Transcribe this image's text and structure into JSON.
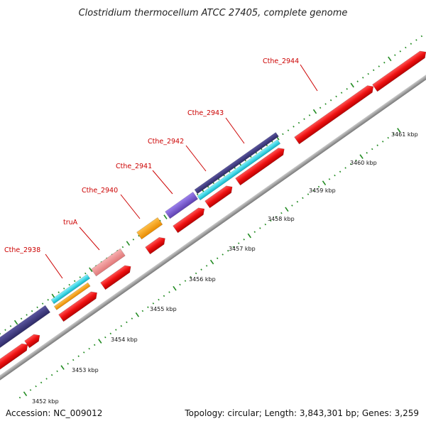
{
  "map": {
    "title": "Clostridium thermocellum ATCC 27405, complete genome",
    "accession_text": "Accession: NC_009012",
    "summary_text": "Topology: circular; Length: 3,843,301 bp; Genes: 3,259",
    "scale_labels": [
      "3452 kbp",
      "3453 kbp",
      "3454 kbp",
      "3455 kbp",
      "3456 kbp",
      "3457 kbp",
      "3458 kbp",
      "3459 kbp",
      "3460 kbp",
      "3461 kbp"
    ],
    "gene_labels": [
      "Cthe_2938",
      "truA",
      "Cthe_2940",
      "Cthe_2941",
      "Cthe_2942",
      "Cthe_2943",
      "Cthe_2944"
    ]
  },
  "colors": {
    "cds": "#ee1111",
    "trna": "#ffa008",
    "rrna_like": "#f08c8c",
    "cog_blue": "#443f7f",
    "cog_violet": "#7b58d4",
    "cog_cyan": "#16d8e8",
    "backbone": "#999999",
    "tick": "#228b22",
    "label": "#cc0000"
  }
}
